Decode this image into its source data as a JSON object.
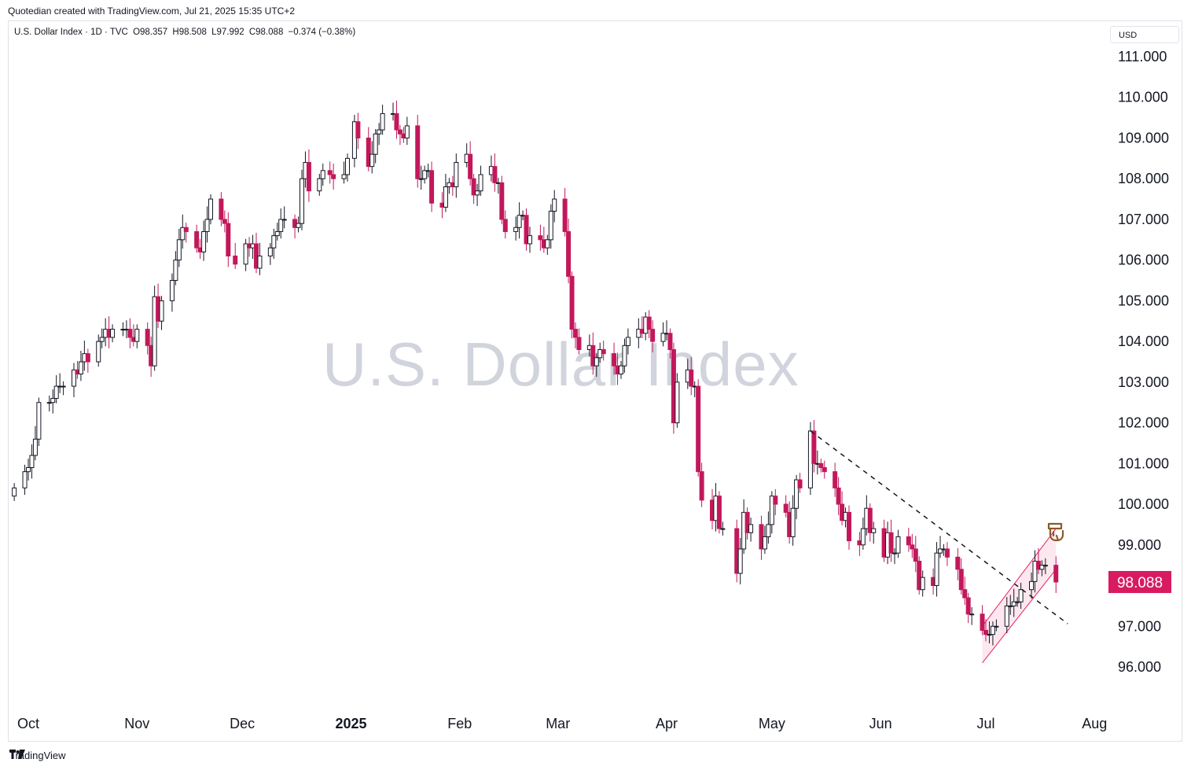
{
  "header": {
    "credit": "Quotedian created with TradingView.com, Jul 21, 2025 15:35 UTC+2",
    "symbol": "U.S. Dollar Index · 1D · TVC",
    "open": "O98.357",
    "high": "H98.508",
    "low": "L97.992",
    "close": "C98.088",
    "change": "−0.374 (−0.38%)",
    "currency": "USD"
  },
  "watermark": "U.S. Dollar Index",
  "footer": {
    "brand": "TradingView"
  },
  "colors": {
    "up": "#ffffff",
    "down": "#c2185b",
    "wick": "#131722",
    "last_price_bg": "#d81b60",
    "channel": "#e91e63",
    "trendline": "#131722"
  },
  "icons": [
    "tradingview-logo-icon",
    "hand-pointer-icon"
  ],
  "chart_data": {
    "type": "candlestick",
    "title": "U.S. Dollar Index",
    "ylim": [
      95.5,
      111.5
    ],
    "y_ticks": [
      "111.000",
      "110.000",
      "109.000",
      "108.000",
      "107.000",
      "106.000",
      "105.000",
      "104.000",
      "103.000",
      "102.000",
      "101.000",
      "100.000",
      "99.000",
      "97.000",
      "96.000"
    ],
    "x_ticks": [
      {
        "label": "Oct",
        "x": "2024-10-01"
      },
      {
        "label": "Nov",
        "x": "2024-11-01"
      },
      {
        "label": "Dec",
        "x": "2024-12-01"
      },
      {
        "label": "2025",
        "x": "2025-01-01",
        "bold": true
      },
      {
        "label": "Feb",
        "x": "2025-02-01"
      },
      {
        "label": "Mar",
        "x": "2025-03-01"
      },
      {
        "label": "Apr",
        "x": "2025-04-01"
      },
      {
        "label": "May",
        "x": "2025-05-01"
      },
      {
        "label": "Jun",
        "x": "2025-06-01"
      },
      {
        "label": "Jul",
        "x": "2025-07-01"
      },
      {
        "label": "Aug",
        "x": "2025-08-01"
      }
    ],
    "last_price": {
      "label": "98.088",
      "value": 98.088
    },
    "trendline": {
      "from": {
        "x": "2025-05-12",
        "y": 101.8
      },
      "to": {
        "x": "2025-07-21",
        "y": 97.1
      }
    },
    "channel": {
      "lower": {
        "from": {
          "x": "2025-06-30",
          "y": 96.1
        },
        "to": {
          "x": "2025-07-21",
          "y": 98.4
        }
      },
      "upper": {
        "from": {
          "x": "2025-06-30",
          "y": 97.0
        },
        "to": {
          "x": "2025-07-21",
          "y": 99.4
        }
      }
    },
    "closes": [
      [
        "2024-09-27",
        100.4
      ],
      [
        "2024-09-30",
        100.8
      ],
      [
        "2024-10-01",
        100.9
      ],
      [
        "2024-10-02",
        101.2
      ],
      [
        "2024-10-03",
        101.6
      ],
      [
        "2024-10-04",
        102.5
      ],
      [
        "2024-10-07",
        102.5
      ],
      [
        "2024-10-08",
        102.6
      ],
      [
        "2024-10-09",
        102.9
      ],
      [
        "2024-10-10",
        102.9
      ],
      [
        "2024-10-11",
        102.9
      ],
      [
        "2024-10-14",
        103.3
      ],
      [
        "2024-10-15",
        103.2
      ],
      [
        "2024-10-16",
        103.5
      ],
      [
        "2024-10-17",
        103.7
      ],
      [
        "2024-10-18",
        103.5
      ],
      [
        "2024-10-21",
        104.0
      ],
      [
        "2024-10-22",
        104.1
      ],
      [
        "2024-10-23",
        104.3
      ],
      [
        "2024-10-24",
        104.1
      ],
      [
        "2024-10-25",
        104.3
      ],
      [
        "2024-10-28",
        104.3
      ],
      [
        "2024-10-29",
        104.3
      ],
      [
        "2024-10-30",
        104.1
      ],
      [
        "2024-10-31",
        104.0
      ],
      [
        "2024-11-01",
        104.3
      ],
      [
        "2024-11-04",
        103.9
      ],
      [
        "2024-11-05",
        103.4
      ],
      [
        "2024-11-06",
        105.1
      ],
      [
        "2024-11-07",
        104.5
      ],
      [
        "2024-11-08",
        105.0
      ],
      [
        "2024-11-11",
        105.5
      ],
      [
        "2024-11-12",
        106.0
      ],
      [
        "2024-11-13",
        106.5
      ],
      [
        "2024-11-14",
        106.8
      ],
      [
        "2024-11-15",
        106.7
      ],
      [
        "2024-11-18",
        106.3
      ],
      [
        "2024-11-19",
        106.2
      ],
      [
        "2024-11-20",
        106.7
      ],
      [
        "2024-11-21",
        107.0
      ],
      [
        "2024-11-22",
        107.5
      ],
      [
        "2024-11-25",
        107.0
      ],
      [
        "2024-11-26",
        106.9
      ],
      [
        "2024-11-27",
        106.1
      ],
      [
        "2024-11-29",
        105.9
      ],
      [
        "2024-12-02",
        106.4
      ],
      [
        "2024-12-03",
        106.3
      ],
      [
        "2024-12-04",
        106.4
      ],
      [
        "2024-12-05",
        105.8
      ],
      [
        "2024-12-06",
        106.1
      ],
      [
        "2024-12-09",
        106.3
      ],
      [
        "2024-12-10",
        106.6
      ],
      [
        "2024-12-11",
        106.7
      ],
      [
        "2024-12-12",
        107.0
      ],
      [
        "2024-12-13",
        107.0
      ],
      [
        "2024-12-16",
        106.8
      ],
      [
        "2024-12-17",
        106.9
      ],
      [
        "2024-12-18",
        108.0
      ],
      [
        "2024-12-19",
        108.4
      ],
      [
        "2024-12-20",
        107.7
      ],
      [
        "2024-12-23",
        108.0
      ],
      [
        "2024-12-24",
        108.2
      ],
      [
        "2024-12-26",
        108.1
      ],
      [
        "2024-12-27",
        108.0
      ],
      [
        "2024-12-30",
        108.1
      ],
      [
        "2024-12-31",
        108.5
      ],
      [
        "2025-01-02",
        109.4
      ],
      [
        "2025-01-03",
        109.0
      ],
      [
        "2025-01-06",
        108.3
      ],
      [
        "2025-01-07",
        108.6
      ],
      [
        "2025-01-08",
        109.1
      ],
      [
        "2025-01-09",
        109.2
      ],
      [
        "2025-01-10",
        109.6
      ],
      [
        "2025-01-13",
        109.6
      ],
      [
        "2025-01-14",
        109.2
      ],
      [
        "2025-01-15",
        109.1
      ],
      [
        "2025-01-16",
        109.0
      ],
      [
        "2025-01-17",
        109.3
      ],
      [
        "2025-01-20",
        108.0
      ],
      [
        "2025-01-21",
        108.0
      ],
      [
        "2025-01-22",
        108.2
      ],
      [
        "2025-01-23",
        108.2
      ],
      [
        "2025-01-24",
        107.4
      ],
      [
        "2025-01-27",
        107.3
      ],
      [
        "2025-01-28",
        107.8
      ],
      [
        "2025-01-29",
        107.9
      ],
      [
        "2025-01-30",
        107.8
      ],
      [
        "2025-01-31",
        108.4
      ],
      [
        "2025-02-03",
        108.6
      ],
      [
        "2025-02-04",
        108.0
      ],
      [
        "2025-02-05",
        107.6
      ],
      [
        "2025-02-06",
        107.7
      ],
      [
        "2025-02-07",
        108.1
      ],
      [
        "2025-02-10",
        108.3
      ],
      [
        "2025-02-11",
        107.9
      ],
      [
        "2025-02-12",
        107.9
      ],
      [
        "2025-02-13",
        107.0
      ],
      [
        "2025-02-14",
        106.7
      ],
      [
        "2025-02-17",
        106.8
      ],
      [
        "2025-02-18",
        107.1
      ],
      [
        "2025-02-19",
        107.1
      ],
      [
        "2025-02-20",
        106.4
      ],
      [
        "2025-02-21",
        106.6
      ],
      [
        "2025-02-24",
        106.5
      ],
      [
        "2025-02-25",
        106.3
      ],
      [
        "2025-02-26",
        106.5
      ],
      [
        "2025-02-27",
        107.2
      ],
      [
        "2025-02-28",
        107.5
      ],
      [
        "2025-03-03",
        106.7
      ],
      [
        "2025-03-04",
        105.6
      ],
      [
        "2025-03-05",
        104.3
      ],
      [
        "2025-03-06",
        104.1
      ],
      [
        "2025-03-07",
        103.8
      ],
      [
        "2025-03-10",
        103.9
      ],
      [
        "2025-03-11",
        103.4
      ],
      [
        "2025-03-12",
        103.6
      ],
      [
        "2025-03-13",
        103.8
      ],
      [
        "2025-03-14",
        103.7
      ],
      [
        "2025-03-17",
        103.4
      ],
      [
        "2025-03-18",
        103.2
      ],
      [
        "2025-03-19",
        103.4
      ],
      [
        "2025-03-20",
        103.9
      ],
      [
        "2025-03-21",
        104.1
      ],
      [
        "2025-03-24",
        104.3
      ],
      [
        "2025-03-25",
        104.2
      ],
      [
        "2025-03-26",
        104.6
      ],
      [
        "2025-03-27",
        104.3
      ],
      [
        "2025-03-28",
        104.0
      ],
      [
        "2025-03-31",
        104.2
      ],
      [
        "2025-04-01",
        104.2
      ],
      [
        "2025-04-02",
        103.8
      ],
      [
        "2025-04-03",
        102.0
      ],
      [
        "2025-04-04",
        103.0
      ],
      [
        "2025-04-07",
        103.3
      ],
      [
        "2025-04-08",
        102.9
      ],
      [
        "2025-04-09",
        102.9
      ],
      [
        "2025-04-10",
        100.8
      ],
      [
        "2025-04-11",
        100.1
      ],
      [
        "2025-04-14",
        99.6
      ],
      [
        "2025-04-15",
        100.2
      ],
      [
        "2025-04-16",
        99.4
      ],
      [
        "2025-04-17",
        99.4
      ],
      [
        "2025-04-21",
        98.3
      ],
      [
        "2025-04-22",
        98.9
      ],
      [
        "2025-04-23",
        99.8
      ],
      [
        "2025-04-24",
        99.3
      ],
      [
        "2025-04-25",
        99.5
      ],
      [
        "2025-04-28",
        98.9
      ],
      [
        "2025-04-29",
        99.2
      ],
      [
        "2025-04-30",
        99.5
      ],
      [
        "2025-05-01",
        100.2
      ],
      [
        "2025-05-02",
        100.0
      ],
      [
        "2025-05-05",
        99.8
      ],
      [
        "2025-05-06",
        99.2
      ],
      [
        "2025-05-07",
        99.9
      ],
      [
        "2025-05-08",
        100.6
      ],
      [
        "2025-05-09",
        100.4
      ],
      [
        "2025-05-12",
        101.8
      ],
      [
        "2025-05-13",
        101.0
      ],
      [
        "2025-05-14",
        101.0
      ],
      [
        "2025-05-15",
        100.9
      ],
      [
        "2025-05-16",
        100.8
      ],
      [
        "2025-05-19",
        100.4
      ],
      [
        "2025-05-20",
        100.0
      ],
      [
        "2025-05-21",
        99.6
      ],
      [
        "2025-05-22",
        99.8
      ],
      [
        "2025-05-23",
        99.1
      ],
      [
        "2025-05-26",
        99.0
      ],
      [
        "2025-05-27",
        99.4
      ],
      [
        "2025-05-28",
        99.9
      ],
      [
        "2025-05-29",
        99.3
      ],
      [
        "2025-05-30",
        99.4
      ],
      [
        "2025-06-02",
        98.7
      ],
      [
        "2025-06-03",
        99.3
      ],
      [
        "2025-06-04",
        98.8
      ],
      [
        "2025-06-05",
        98.8
      ],
      [
        "2025-06-06",
        99.2
      ],
      [
        "2025-06-09",
        99.0
      ],
      [
        "2025-06-10",
        98.9
      ],
      [
        "2025-06-11",
        98.6
      ],
      [
        "2025-06-12",
        97.9
      ],
      [
        "2025-06-13",
        98.2
      ],
      [
        "2025-06-16",
        98.0
      ],
      [
        "2025-06-17",
        98.8
      ],
      [
        "2025-06-18",
        98.9
      ],
      [
        "2025-06-19",
        98.9
      ],
      [
        "2025-06-20",
        98.7
      ],
      [
        "2025-06-23",
        98.4
      ],
      [
        "2025-06-24",
        97.9
      ],
      [
        "2025-06-25",
        97.7
      ],
      [
        "2025-06-26",
        97.3
      ],
      [
        "2025-06-27",
        97.3
      ],
      [
        "2025-06-30",
        96.9
      ],
      [
        "2025-07-01",
        96.8
      ],
      [
        "2025-07-02",
        96.8
      ],
      [
        "2025-07-03",
        97.0
      ],
      [
        "2025-07-04",
        97.0
      ],
      [
        "2025-07-07",
        97.5
      ],
      [
        "2025-07-08",
        97.5
      ],
      [
        "2025-07-09",
        97.6
      ],
      [
        "2025-07-10",
        97.6
      ],
      [
        "2025-07-11",
        97.9
      ],
      [
        "2025-07-14",
        98.1
      ],
      [
        "2025-07-15",
        98.6
      ],
      [
        "2025-07-16",
        98.4
      ],
      [
        "2025-07-17",
        98.5
      ],
      [
        "2025-07-18",
        98.5
      ],
      [
        "2025-07-21",
        98.088
      ]
    ]
  }
}
